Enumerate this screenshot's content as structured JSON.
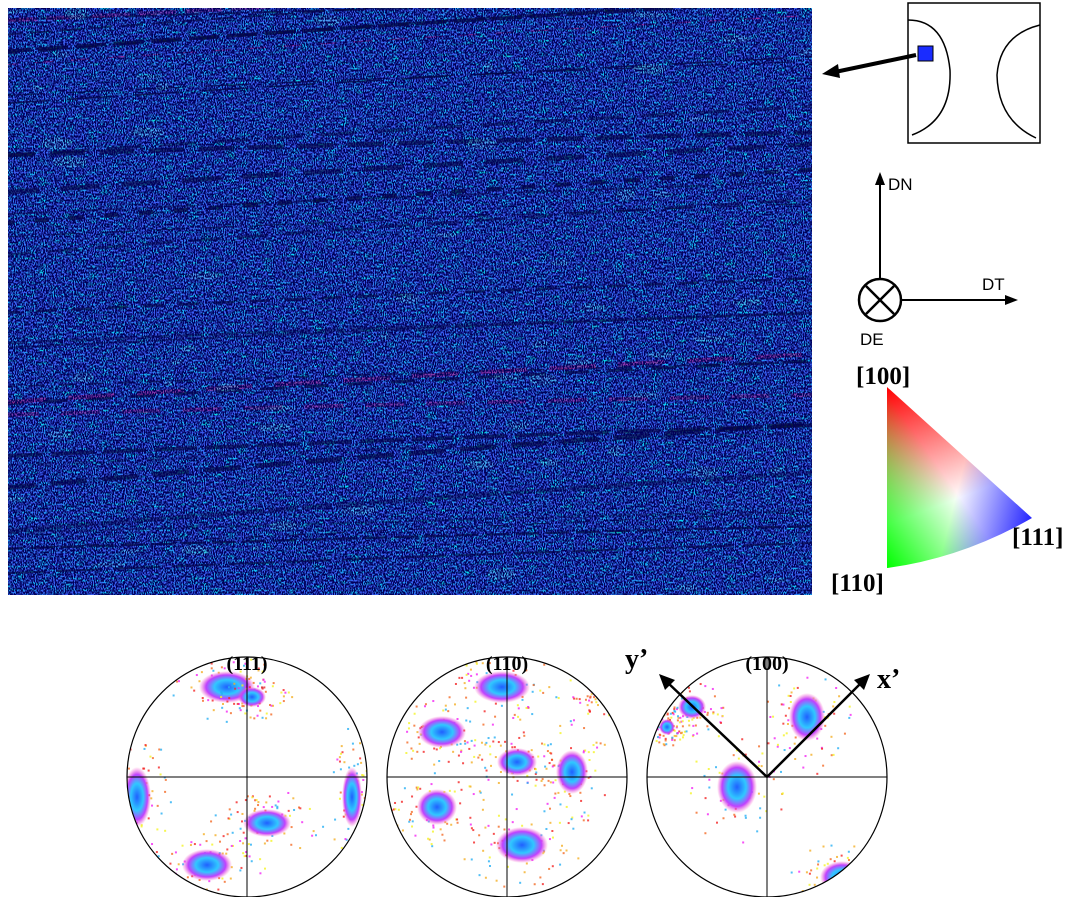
{
  "axes": {
    "normal": "DN",
    "transverse": "DT",
    "extrusion": "DE"
  },
  "ipf_key": {
    "top": "[100]",
    "bottom_left": "[110]",
    "right": "[111]"
  },
  "pole_figures": [
    {
      "label": "(111)"
    },
    {
      "label": "(110)"
    },
    {
      "label": "(100)",
      "axis_labels": [
        "y’",
        "x’"
      ]
    }
  ]
}
